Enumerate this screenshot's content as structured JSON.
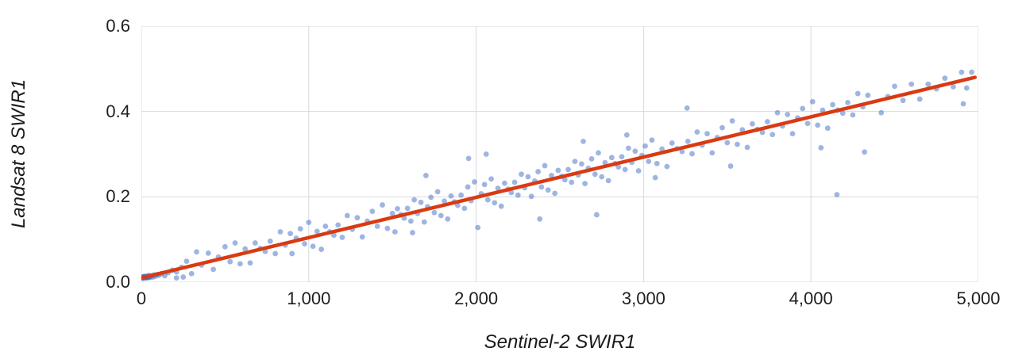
{
  "chart_data": {
    "type": "scatter",
    "title": "",
    "xlabel": "Sentinel-2 SWIR1",
    "ylabel": "Landsat 8 SWIR1",
    "xlim": [
      0,
      5000
    ],
    "ylim": [
      0,
      0.6
    ],
    "grid": true,
    "legend": "none",
    "x_ticks": [
      {
        "v": 0,
        "label": "0"
      },
      {
        "v": 1000,
        "label": "1,000"
      },
      {
        "v": 2000,
        "label": "2,000"
      },
      {
        "v": 3000,
        "label": "3,000"
      },
      {
        "v": 4000,
        "label": "4,000"
      },
      {
        "v": 5000,
        "label": "5,000"
      }
    ],
    "y_ticks": [
      {
        "v": 0.0,
        "label": "0.0"
      },
      {
        "v": 0.2,
        "label": "0.2"
      },
      {
        "v": 0.4,
        "label": "0.4"
      },
      {
        "v": 0.6,
        "label": "0.6"
      }
    ],
    "series": [
      {
        "name": "samples",
        "kind": "scatter",
        "color": "#3f6cc4",
        "opacity": 0.5,
        "radius": 3.4,
        "points": [
          [
            5,
            0.01
          ],
          [
            8,
            0.012
          ],
          [
            10,
            0.009
          ],
          [
            12,
            0.013
          ],
          [
            15,
            0.01
          ],
          [
            18,
            0.012
          ],
          [
            20,
            0.014
          ],
          [
            22,
            0.011
          ],
          [
            25,
            0.01
          ],
          [
            28,
            0.013
          ],
          [
            30,
            0.012
          ],
          [
            32,
            0.011
          ],
          [
            35,
            0.014
          ],
          [
            38,
            0.01
          ],
          [
            40,
            0.013
          ],
          [
            42,
            0.012
          ],
          [
            45,
            0.016
          ],
          [
            50,
            0.011
          ],
          [
            55,
            0.013
          ],
          [
            60,
            0.015
          ],
          [
            68,
            0.012
          ],
          [
            75,
            0.017
          ],
          [
            85,
            0.014
          ],
          [
            95,
            0.018
          ],
          [
            105,
            0.016
          ],
          [
            120,
            0.02
          ],
          [
            140,
            0.015
          ],
          [
            160,
            0.022
          ],
          [
            185,
            0.028
          ],
          [
            210,
            0.024
          ],
          [
            240,
            0.035
          ],
          [
            210,
            0.01
          ],
          [
            250,
            0.012
          ],
          [
            270,
            0.049
          ],
          [
            300,
            0.02
          ],
          [
            330,
            0.071
          ],
          [
            360,
            0.04
          ],
          [
            400,
            0.068
          ],
          [
            430,
            0.03
          ],
          [
            460,
            0.059
          ],
          [
            500,
            0.083
          ],
          [
            530,
            0.048
          ],
          [
            560,
            0.092
          ],
          [
            590,
            0.043
          ],
          [
            620,
            0.078
          ],
          [
            650,
            0.045
          ],
          [
            680,
            0.092
          ],
          [
            710,
            0.079
          ],
          [
            740,
            0.072
          ],
          [
            770,
            0.096
          ],
          [
            800,
            0.067
          ],
          [
            830,
            0.118
          ],
          [
            860,
            0.087
          ],
          [
            890,
            0.114
          ],
          [
            900,
            0.067
          ],
          [
            925,
            0.103
          ],
          [
            950,
            0.125
          ],
          [
            975,
            0.09
          ],
          [
            1000,
            0.14
          ],
          [
            1025,
            0.084
          ],
          [
            1050,
            0.119
          ],
          [
            1075,
            0.077
          ],
          [
            1100,
            0.131
          ],
          [
            1125,
            0.118
          ],
          [
            1150,
            0.11
          ],
          [
            1175,
            0.134
          ],
          [
            1200,
            0.105
          ],
          [
            1230,
            0.156
          ],
          [
            1260,
            0.124
          ],
          [
            1290,
            0.151
          ],
          [
            1320,
            0.106
          ],
          [
            1350,
            0.143
          ],
          [
            1380,
            0.166
          ],
          [
            1410,
            0.131
          ],
          [
            1440,
            0.181
          ],
          [
            1470,
            0.126
          ],
          [
            1500,
            0.161
          ],
          [
            1515,
            0.118
          ],
          [
            1530,
            0.172
          ],
          [
            1550,
            0.158
          ],
          [
            1570,
            0.15
          ],
          [
            1590,
            0.173
          ],
          [
            1610,
            0.143
          ],
          [
            1620,
            0.116
          ],
          [
            1630,
            0.193
          ],
          [
            1650,
            0.161
          ],
          [
            1670,
            0.187
          ],
          [
            1690,
            0.141
          ],
          [
            1700,
            0.25
          ],
          [
            1710,
            0.177
          ],
          [
            1730,
            0.199
          ],
          [
            1750,
            0.163
          ],
          [
            1770,
            0.212
          ],
          [
            1790,
            0.156
          ],
          [
            1810,
            0.19
          ],
          [
            1830,
            0.148
          ],
          [
            1850,
            0.202
          ],
          [
            1870,
            0.188
          ],
          [
            1890,
            0.18
          ],
          [
            1910,
            0.204
          ],
          [
            1930,
            0.173
          ],
          [
            1950,
            0.223
          ],
          [
            1955,
            0.29
          ],
          [
            1970,
            0.191
          ],
          [
            1990,
            0.235
          ],
          [
            2010,
            0.128
          ],
          [
            2030,
            0.207
          ],
          [
            2050,
            0.229
          ],
          [
            2060,
            0.3
          ],
          [
            2070,
            0.193
          ],
          [
            2090,
            0.242
          ],
          [
            2110,
            0.186
          ],
          [
            2130,
            0.22
          ],
          [
            2150,
            0.178
          ],
          [
            2170,
            0.232
          ],
          [
            2190,
            0.218
          ],
          [
            2210,
            0.21
          ],
          [
            2230,
            0.234
          ],
          [
            2250,
            0.204
          ],
          [
            2270,
            0.253
          ],
          [
            2290,
            0.221
          ],
          [
            2310,
            0.247
          ],
          [
            2330,
            0.201
          ],
          [
            2350,
            0.237
          ],
          [
            2370,
            0.259
          ],
          [
            2380,
            0.148
          ],
          [
            2390,
            0.223
          ],
          [
            2410,
            0.273
          ],
          [
            2430,
            0.216
          ],
          [
            2450,
            0.25
          ],
          [
            2470,
            0.208
          ],
          [
            2490,
            0.262
          ],
          [
            2510,
            0.248
          ],
          [
            2530,
            0.24
          ],
          [
            2550,
            0.264
          ],
          [
            2570,
            0.234
          ],
          [
            2590,
            0.283
          ],
          [
            2610,
            0.251
          ],
          [
            2630,
            0.277
          ],
          [
            2640,
            0.33
          ],
          [
            2650,
            0.231
          ],
          [
            2670,
            0.267
          ],
          [
            2690,
            0.289
          ],
          [
            2710,
            0.253
          ],
          [
            2720,
            0.158
          ],
          [
            2730,
            0.303
          ],
          [
            2750,
            0.247
          ],
          [
            2770,
            0.28
          ],
          [
            2790,
            0.238
          ],
          [
            2810,
            0.292
          ],
          [
            2830,
            0.278
          ],
          [
            2850,
            0.27
          ],
          [
            2870,
            0.294
          ],
          [
            2890,
            0.264
          ],
          [
            2900,
            0.345
          ],
          [
            2910,
            0.314
          ],
          [
            2930,
            0.281
          ],
          [
            2950,
            0.307
          ],
          [
            2970,
            0.261
          ],
          [
            2990,
            0.297
          ],
          [
            3010,
            0.319
          ],
          [
            3030,
            0.283
          ],
          [
            3050,
            0.333
          ],
          [
            3070,
            0.245
          ],
          [
            3080,
            0.278
          ],
          [
            3110,
            0.312
          ],
          [
            3140,
            0.271
          ],
          [
            3170,
            0.326
          ],
          [
            3200,
            0.313
          ],
          [
            3230,
            0.306
          ],
          [
            3260,
            0.408
          ],
          [
            3265,
            0.33
          ],
          [
            3290,
            0.301
          ],
          [
            3320,
            0.352
          ],
          [
            3350,
            0.321
          ],
          [
            3380,
            0.348
          ],
          [
            3410,
            0.303
          ],
          [
            3440,
            0.339
          ],
          [
            3470,
            0.362
          ],
          [
            3500,
            0.327
          ],
          [
            3520,
            0.272
          ],
          [
            3530,
            0.378
          ],
          [
            3560,
            0.323
          ],
          [
            3590,
            0.357
          ],
          [
            3620,
            0.316
          ],
          [
            3650,
            0.371
          ],
          [
            3680,
            0.358
          ],
          [
            3710,
            0.351
          ],
          [
            3740,
            0.376
          ],
          [
            3770,
            0.346
          ],
          [
            3800,
            0.397
          ],
          [
            3830,
            0.366
          ],
          [
            3860,
            0.393
          ],
          [
            3890,
            0.348
          ],
          [
            3920,
            0.385
          ],
          [
            3950,
            0.407
          ],
          [
            3980,
            0.372
          ],
          [
            4010,
            0.423
          ],
          [
            4040,
            0.368
          ],
          [
            4060,
            0.315
          ],
          [
            4070,
            0.403
          ],
          [
            4100,
            0.361
          ],
          [
            4130,
            0.416
          ],
          [
            4155,
            0.205
          ],
          [
            4160,
            0.403
          ],
          [
            4190,
            0.396
          ],
          [
            4220,
            0.421
          ],
          [
            4250,
            0.392
          ],
          [
            4280,
            0.442
          ],
          [
            4310,
            0.411
          ],
          [
            4320,
            0.305
          ],
          [
            4340,
            0.438
          ],
          [
            4420,
            0.397
          ],
          [
            4460,
            0.435
          ],
          [
            4500,
            0.459
          ],
          [
            4550,
            0.426
          ],
          [
            4600,
            0.464
          ],
          [
            4650,
            0.429
          ],
          [
            4700,
            0.464
          ],
          [
            4750,
            0.453
          ],
          [
            4800,
            0.478
          ],
          [
            4850,
            0.458
          ],
          [
            4900,
            0.492
          ],
          [
            4910,
            0.418
          ],
          [
            4930,
            0.455
          ],
          [
            4960,
            0.492
          ]
        ]
      },
      {
        "name": "trendline",
        "kind": "line",
        "color": "#d93a12",
        "width": 4.5,
        "points": [
          [
            0,
            0.01
          ],
          [
            4980,
            0.48
          ]
        ]
      }
    ]
  },
  "colors": {
    "point": "#3f6cc4",
    "trend": "#d93a12",
    "grid": "#d9d9d9",
    "text": "#1f1f1f"
  }
}
